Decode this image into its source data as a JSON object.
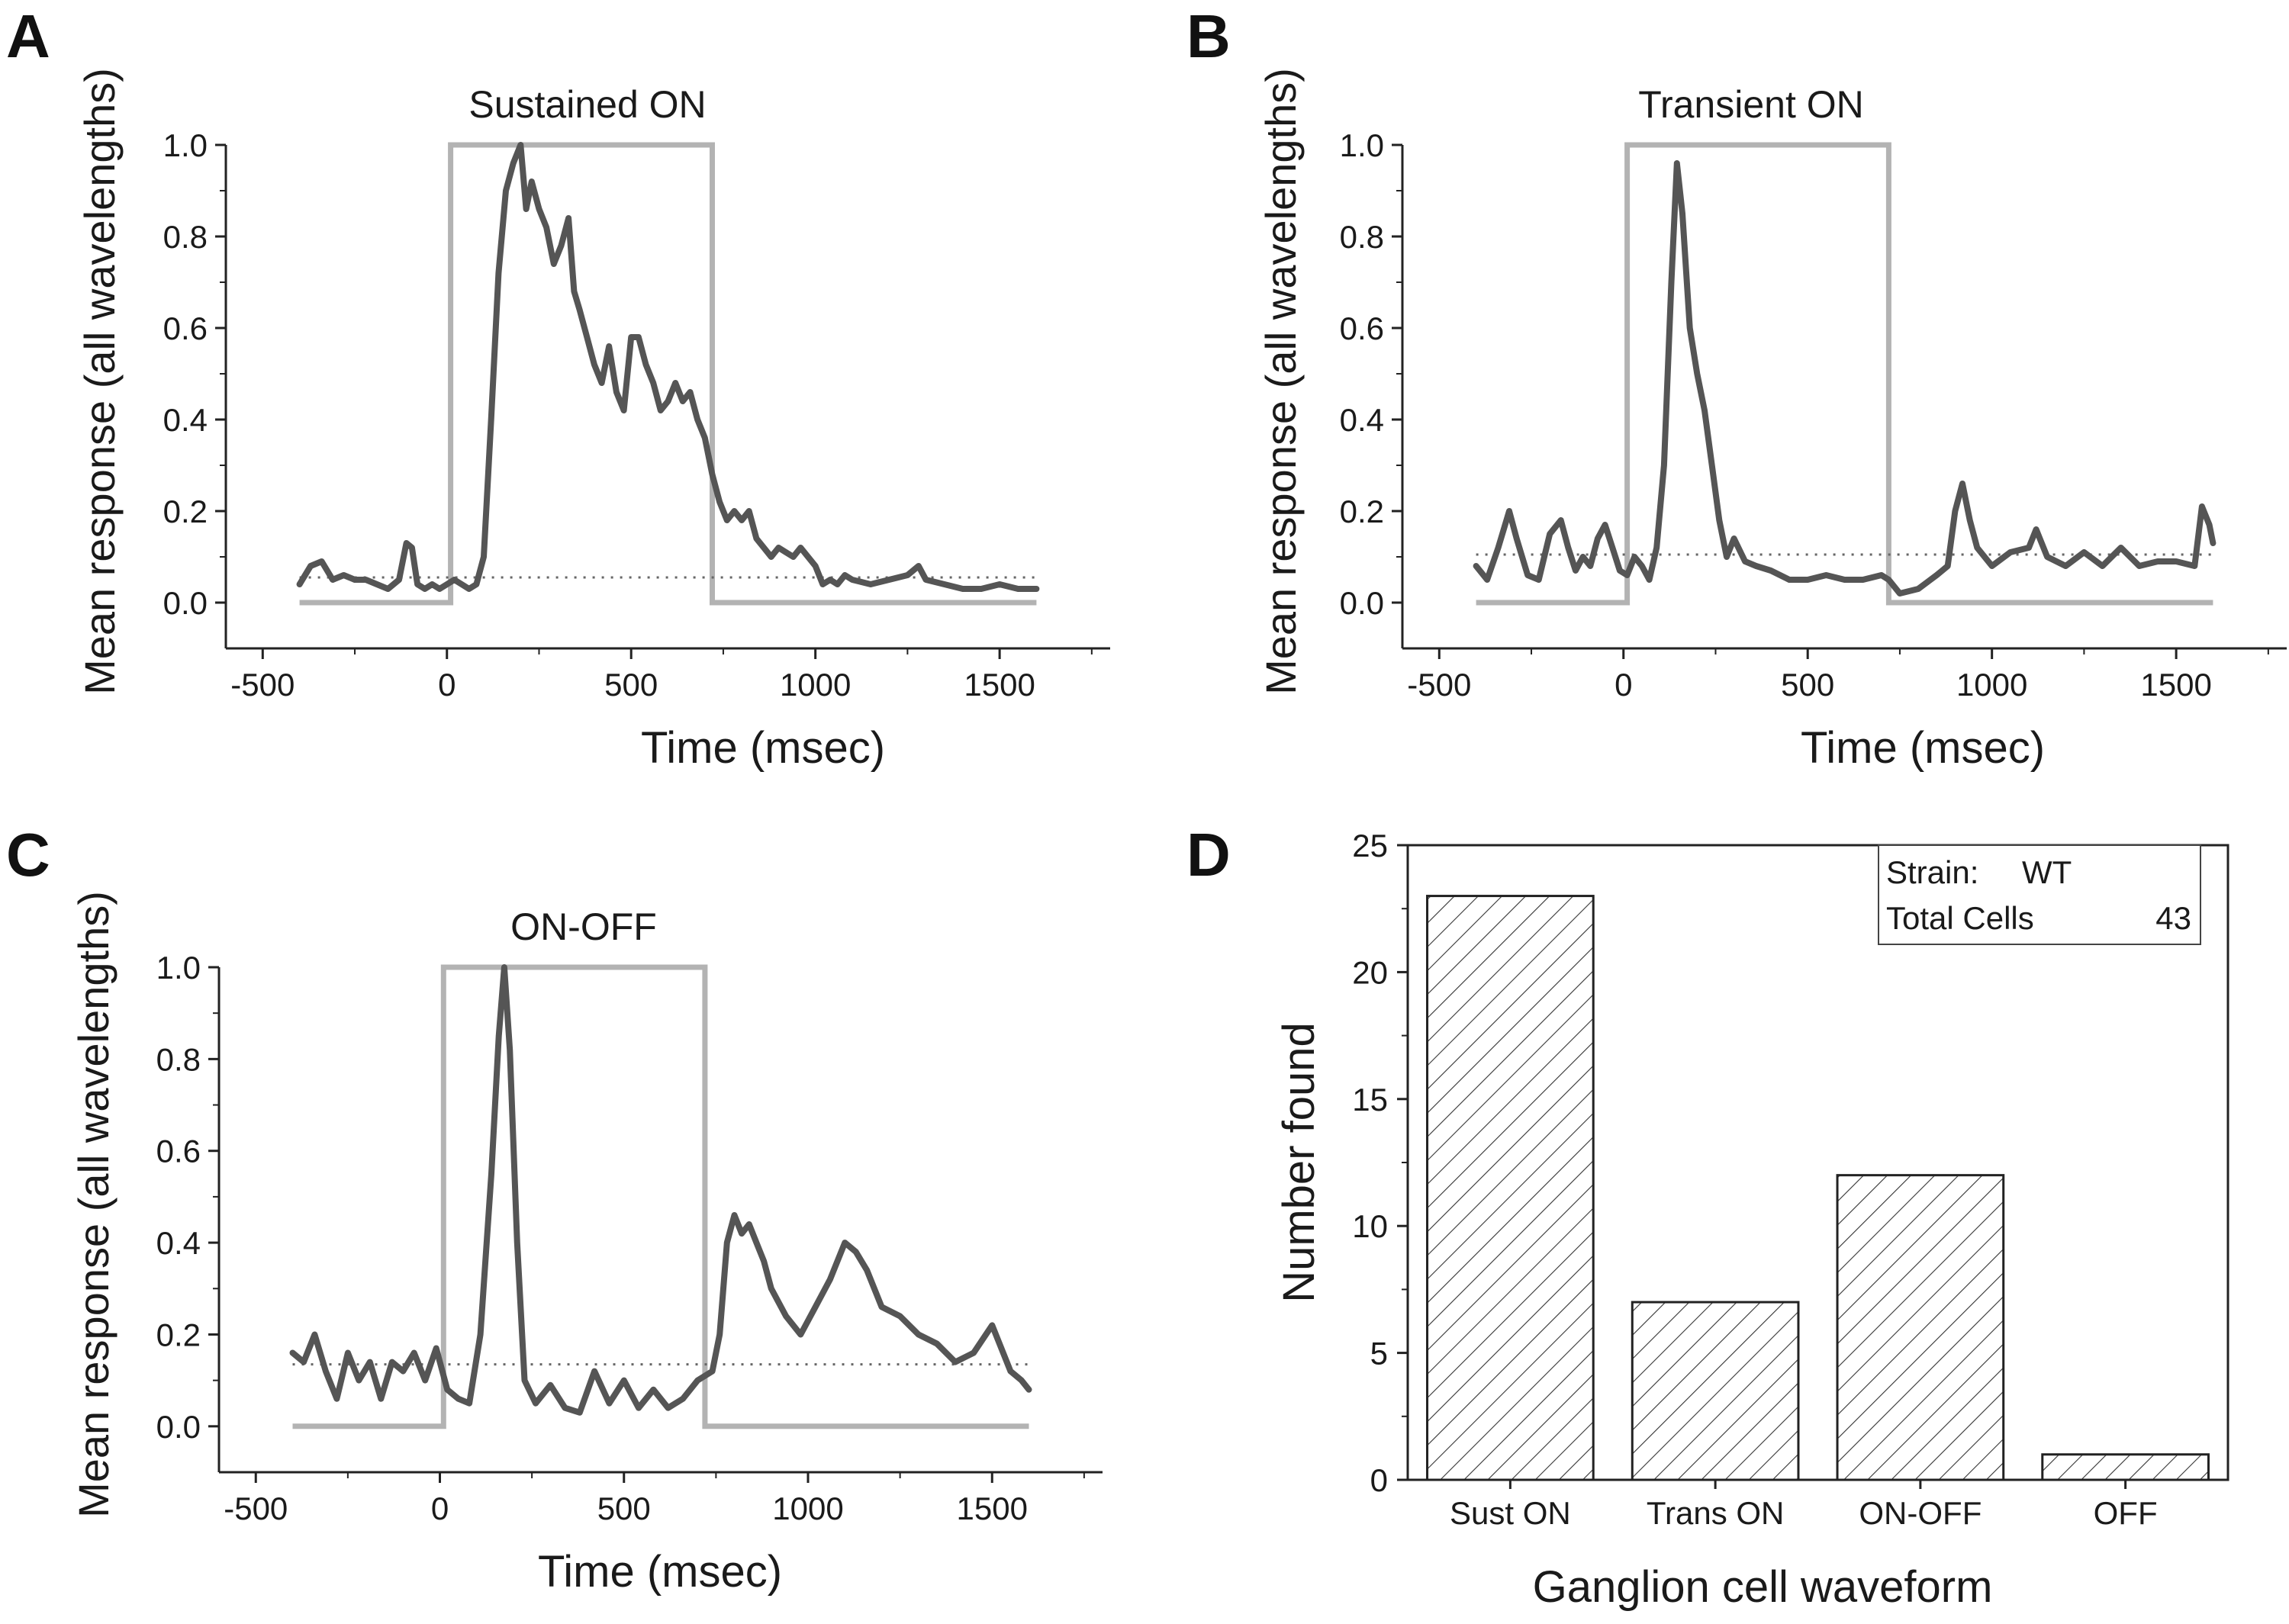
{
  "panel_letters": [
    "A",
    "B",
    "C",
    "D"
  ],
  "chart_data": [
    {
      "type": "line",
      "panel": "A",
      "title": "Sustained ON",
      "xlabel": "Time (msec)",
      "ylabel": "Mean response (all wavelengths)",
      "xlim": [
        -600,
        1800
      ],
      "ylim": [
        -0.1,
        1.0
      ],
      "xticks": [
        -500,
        0,
        500,
        1000,
        1500
      ],
      "yticks": [
        0.0,
        0.2,
        0.4,
        0.6,
        0.8,
        1.0
      ],
      "xtick_labels": [
        "-500",
        "0",
        "500",
        "1000",
        "1500"
      ],
      "ytick_labels": [
        "0.0",
        "0.2",
        "0.4",
        "0.6",
        "0.8",
        "1.0"
      ],
      "grid": false,
      "series": [
        {
          "role": "stimulus",
          "color": "#b3b3b3",
          "x": [
            -400,
            10,
            10,
            720,
            720,
            1600
          ],
          "y": [
            0,
            0,
            1,
            1,
            0,
            0
          ]
        },
        {
          "role": "baseline",
          "color": "#666666",
          "style": "dotted",
          "x": [
            -400,
            1600
          ],
          "y": [
            0.055,
            0.055
          ]
        },
        {
          "role": "response",
          "color": "#555555",
          "x": [
            -400,
            -370,
            -340,
            -310,
            -280,
            -250,
            -220,
            -190,
            -160,
            -130,
            -110,
            -95,
            -80,
            -60,
            -40,
            -20,
            0,
            20,
            40,
            60,
            80,
            100,
            120,
            140,
            160,
            180,
            200,
            215,
            230,
            250,
            270,
            290,
            310,
            330,
            345,
            360,
            380,
            400,
            420,
            440,
            460,
            480,
            500,
            520,
            540,
            560,
            580,
            600,
            620,
            640,
            660,
            680,
            700,
            720,
            740,
            760,
            780,
            800,
            820,
            840,
            860,
            880,
            900,
            920,
            940,
            960,
            980,
            1000,
            1020,
            1040,
            1060,
            1080,
            1100,
            1150,
            1200,
            1250,
            1280,
            1300,
            1350,
            1400,
            1450,
            1500,
            1550,
            1600
          ],
          "y": [
            0.04,
            0.08,
            0.09,
            0.05,
            0.06,
            0.05,
            0.05,
            0.04,
            0.03,
            0.05,
            0.13,
            0.12,
            0.04,
            0.03,
            0.04,
            0.03,
            0.04,
            0.05,
            0.04,
            0.03,
            0.04,
            0.1,
            0.4,
            0.72,
            0.9,
            0.96,
            1.0,
            0.86,
            0.92,
            0.86,
            0.82,
            0.74,
            0.78,
            0.84,
            0.68,
            0.64,
            0.58,
            0.52,
            0.48,
            0.56,
            0.46,
            0.42,
            0.58,
            0.58,
            0.52,
            0.48,
            0.42,
            0.44,
            0.48,
            0.44,
            0.46,
            0.4,
            0.36,
            0.28,
            0.22,
            0.18,
            0.2,
            0.18,
            0.2,
            0.14,
            0.12,
            0.1,
            0.12,
            0.11,
            0.1,
            0.12,
            0.1,
            0.08,
            0.04,
            0.05,
            0.04,
            0.06,
            0.05,
            0.04,
            0.05,
            0.06,
            0.08,
            0.05,
            0.04,
            0.03,
            0.03,
            0.04,
            0.03,
            0.03
          ]
        }
      ]
    },
    {
      "type": "line",
      "panel": "B",
      "title": "Transient ON",
      "xlabel": "Time (msec)",
      "ylabel": "Mean response (all wavelengths)",
      "xlim": [
        -600,
        1800
      ],
      "ylim": [
        -0.1,
        1.0
      ],
      "xticks": [
        -500,
        0,
        500,
        1000,
        1500
      ],
      "yticks": [
        0.0,
        0.2,
        0.4,
        0.6,
        0.8,
        1.0
      ],
      "xtick_labels": [
        "-500",
        "0",
        "500",
        "1000",
        "1500"
      ],
      "ytick_labels": [
        "0.0",
        "0.2",
        "0.4",
        "0.6",
        "0.8",
        "1.0"
      ],
      "grid": false,
      "series": [
        {
          "role": "stimulus",
          "color": "#b3b3b3",
          "x": [
            -400,
            10,
            10,
            720,
            720,
            1600
          ],
          "y": [
            0,
            0,
            1,
            1,
            0,
            0
          ]
        },
        {
          "role": "baseline",
          "color": "#666666",
          "style": "dotted",
          "x": [
            -400,
            1600
          ],
          "y": [
            0.105,
            0.105
          ]
        },
        {
          "role": "response",
          "color": "#555555",
          "x": [
            -400,
            -370,
            -340,
            -310,
            -290,
            -260,
            -230,
            -200,
            -170,
            -150,
            -130,
            -110,
            -90,
            -70,
            -50,
            -30,
            -10,
            10,
            30,
            50,
            70,
            90,
            110,
            130,
            145,
            160,
            180,
            200,
            220,
            240,
            260,
            280,
            300,
            330,
            360,
            400,
            450,
            500,
            550,
            600,
            650,
            700,
            720,
            750,
            800,
            850,
            880,
            900,
            920,
            940,
            960,
            1000,
            1050,
            1100,
            1120,
            1150,
            1200,
            1250,
            1300,
            1350,
            1400,
            1450,
            1500,
            1550,
            1570,
            1590,
            1600
          ],
          "y": [
            0.08,
            0.05,
            0.12,
            0.2,
            0.14,
            0.06,
            0.05,
            0.15,
            0.18,
            0.12,
            0.07,
            0.1,
            0.08,
            0.14,
            0.17,
            0.12,
            0.07,
            0.06,
            0.1,
            0.08,
            0.05,
            0.12,
            0.3,
            0.7,
            0.96,
            0.85,
            0.6,
            0.5,
            0.42,
            0.3,
            0.18,
            0.1,
            0.14,
            0.09,
            0.08,
            0.07,
            0.05,
            0.05,
            0.06,
            0.05,
            0.05,
            0.06,
            0.05,
            0.02,
            0.03,
            0.06,
            0.08,
            0.2,
            0.26,
            0.18,
            0.12,
            0.08,
            0.11,
            0.12,
            0.16,
            0.1,
            0.08,
            0.11,
            0.08,
            0.12,
            0.08,
            0.09,
            0.09,
            0.08,
            0.21,
            0.17,
            0.13
          ]
        }
      ]
    },
    {
      "type": "line",
      "panel": "C",
      "title": "ON-OFF",
      "xlabel": "Time (msec)",
      "ylabel": "Mean response (all wavelengths)",
      "xlim": [
        -600,
        1800
      ],
      "ylim": [
        -0.1,
        1.0
      ],
      "xticks": [
        -500,
        0,
        500,
        1000,
        1500
      ],
      "yticks": [
        0.0,
        0.2,
        0.4,
        0.6,
        0.8,
        1.0
      ],
      "xtick_labels": [
        "-500",
        "0",
        "500",
        "1000",
        "1500"
      ],
      "ytick_labels": [
        "0.0",
        "0.2",
        "0.4",
        "0.6",
        "0.8",
        "1.0"
      ],
      "grid": false,
      "series": [
        {
          "role": "stimulus",
          "color": "#b3b3b3",
          "x": [
            -400,
            10,
            10,
            720,
            720,
            1600
          ],
          "y": [
            0,
            0,
            1,
            1,
            0,
            0
          ]
        },
        {
          "role": "baseline",
          "color": "#666666",
          "style": "dotted",
          "x": [
            -400,
            1600
          ],
          "y": [
            0.135,
            0.135
          ]
        },
        {
          "role": "response",
          "color": "#555555",
          "x": [
            -400,
            -370,
            -340,
            -310,
            -280,
            -250,
            -220,
            -190,
            -160,
            -130,
            -100,
            -70,
            -40,
            -10,
            20,
            50,
            80,
            110,
            140,
            160,
            175,
            190,
            210,
            230,
            260,
            300,
            340,
            380,
            420,
            460,
            500,
            540,
            580,
            620,
            660,
            700,
            740,
            760,
            780,
            800,
            820,
            840,
            860,
            880,
            900,
            940,
            980,
            1020,
            1060,
            1100,
            1130,
            1160,
            1200,
            1250,
            1300,
            1350,
            1400,
            1450,
            1500,
            1550,
            1580,
            1600
          ],
          "y": [
            0.16,
            0.14,
            0.2,
            0.12,
            0.06,
            0.16,
            0.1,
            0.14,
            0.06,
            0.14,
            0.12,
            0.16,
            0.1,
            0.17,
            0.08,
            0.06,
            0.05,
            0.2,
            0.55,
            0.85,
            1.0,
            0.82,
            0.4,
            0.1,
            0.05,
            0.09,
            0.04,
            0.03,
            0.12,
            0.05,
            0.1,
            0.04,
            0.08,
            0.04,
            0.06,
            0.1,
            0.12,
            0.2,
            0.4,
            0.46,
            0.42,
            0.44,
            0.4,
            0.36,
            0.3,
            0.24,
            0.2,
            0.26,
            0.32,
            0.4,
            0.38,
            0.34,
            0.26,
            0.24,
            0.2,
            0.18,
            0.14,
            0.16,
            0.22,
            0.12,
            0.1,
            0.08
          ]
        }
      ]
    },
    {
      "type": "bar",
      "panel": "D",
      "title": "",
      "xlabel": "Ganglion cell waveform",
      "ylabel": "Number found",
      "categories": [
        "Sust ON",
        "Trans ON",
        "ON-OFF",
        "OFF"
      ],
      "values": [
        23,
        7,
        12,
        1
      ],
      "ylim": [
        0,
        25
      ],
      "yticks": [
        0,
        5,
        10,
        15,
        20,
        25
      ],
      "ytick_labels": [
        "0",
        "5",
        "10",
        "15",
        "20",
        "25"
      ],
      "fill": "diagonal-hatch",
      "grid": false,
      "legend_placement": "top-right",
      "legend": {
        "strain_label": "Strain:",
        "strain_value": "WT",
        "total_label": "Total Cells",
        "total_value": "43"
      }
    }
  ]
}
